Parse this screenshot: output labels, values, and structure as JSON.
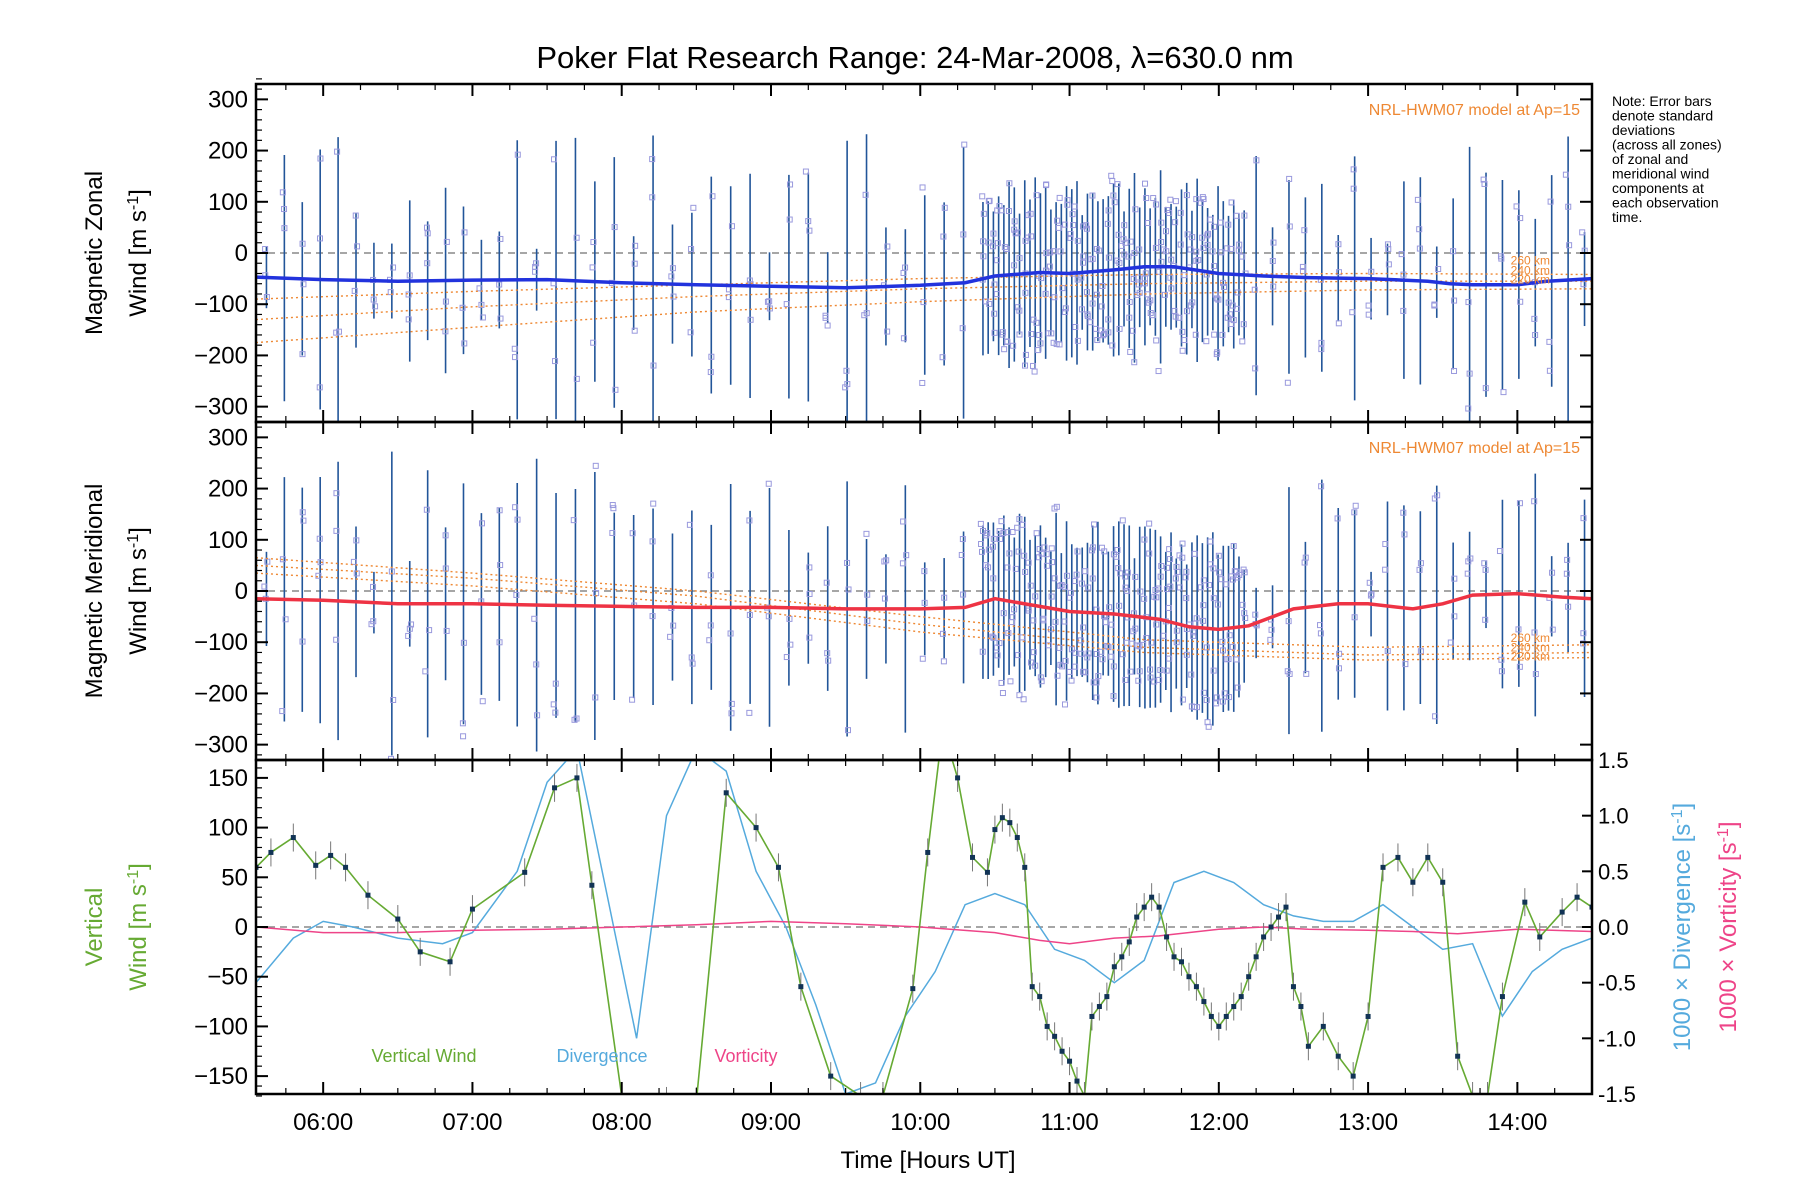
{
  "title": "Poker Flat Research Range: 24-Mar-2008, λ=630.0 nm",
  "note_lines": [
    "Note: Error bars",
    "denote standard",
    "deviations",
    "(across all zones)",
    "of zonal and",
    "meridional wind",
    "components at",
    "each observation",
    "time."
  ],
  "colors": {
    "zonal": "#2233dd",
    "zonal_highlight": "#55aadd",
    "meridional": "#ee3344",
    "meridional_highlight": "#ff5577",
    "vertical": "#66aa33",
    "divergence": "#55aadd",
    "vorticity": "#ee4488",
    "model": "#ee8833",
    "scatter": "#9999dd",
    "errorbar": "#225599"
  },
  "chart_data": [
    {
      "type": "scatter",
      "id": "zonal",
      "ylabel_line1": "Magnetic Zonal",
      "ylabel_line2": "Wind [m s",
      "ylabel_sup": "-1",
      "ylabel_close": "]",
      "ylim": [
        -330,
        330
      ],
      "yticks": [
        300,
        200,
        100,
        0,
        -100,
        -200,
        -300
      ],
      "model_label": "NRL-HWM07 model at Ap=15",
      "model_alt_labels": [
        "260 km",
        "240 km",
        "220 km"
      ],
      "mean_wind": {
        "x": [
          5.55,
          6.0,
          6.5,
          7.0,
          7.5,
          8.0,
          8.5,
          9.0,
          9.5,
          10.0,
          10.3,
          10.5,
          10.8,
          11.0,
          11.3,
          11.5,
          11.7,
          12.0,
          12.3,
          12.6,
          13.0,
          13.4,
          13.55,
          13.7,
          14.0,
          14.2,
          14.5
        ],
        "y": [
          -47,
          -52,
          -55,
          -53,
          -52,
          -58,
          -62,
          -65,
          -68,
          -63,
          -58,
          -45,
          -38,
          -40,
          -33,
          -27,
          -27,
          -40,
          -45,
          -48,
          -50,
          -55,
          -60,
          -62,
          -62,
          -55,
          -50
        ]
      },
      "model_curves": [
        {
          "name": "260 km",
          "x": [
            5.55,
            7.0,
            8.5,
            10.0,
            11.5,
            13.0,
            14.5
          ],
          "y": [
            -90,
            -75,
            -62,
            -50,
            -42,
            -40,
            -42
          ]
        },
        {
          "name": "240 km",
          "x": [
            5.55,
            7.0,
            8.5,
            10.0,
            11.5,
            13.0,
            14.5
          ],
          "y": [
            -130,
            -105,
            -85,
            -70,
            -60,
            -55,
            -55
          ]
        },
        {
          "name": "220 km",
          "x": [
            5.55,
            7.0,
            8.5,
            10.0,
            11.5,
            13.0,
            14.5
          ],
          "y": [
            -175,
            -145,
            -115,
            -95,
            -80,
            -72,
            -70
          ]
        }
      ]
    },
    {
      "type": "scatter",
      "id": "meridional",
      "ylabel_line1": "Magnetic Meridional",
      "ylabel_line2": "Wind [m s",
      "ylabel_sup": "-1",
      "ylabel_close": "]",
      "ylim": [
        -330,
        330
      ],
      "yticks": [
        300,
        200,
        100,
        0,
        -100,
        -200,
        -300
      ],
      "model_label": "NRL-HWM07 model at Ap=15",
      "model_alt_labels": [
        "260 km",
        "240 km",
        "220 km"
      ],
      "mean_wind": {
        "x": [
          5.55,
          6.0,
          6.5,
          7.0,
          7.5,
          8.0,
          8.5,
          9.0,
          9.5,
          10.0,
          10.3,
          10.5,
          10.8,
          11.0,
          11.3,
          11.6,
          11.8,
          12.0,
          12.2,
          12.5,
          12.8,
          13.0,
          13.3,
          13.5,
          13.7,
          14.0,
          14.3,
          14.5
        ],
        "y": [
          -15,
          -18,
          -25,
          -25,
          -28,
          -30,
          -32,
          -32,
          -35,
          -35,
          -32,
          -15,
          -30,
          -40,
          -45,
          -55,
          -70,
          -75,
          -68,
          -35,
          -25,
          -25,
          -35,
          -25,
          -8,
          -5,
          -12,
          -15
        ]
      },
      "model_curves": [
        {
          "name": "260 km",
          "x": [
            5.55,
            7.0,
            8.5,
            10.0,
            11.5,
            13.0,
            14.5
          ],
          "y": [
            65,
            35,
            0,
            -50,
            -95,
            -110,
            -105
          ]
        },
        {
          "name": "240 km",
          "x": [
            5.55,
            7.0,
            8.5,
            10.0,
            11.5,
            13.0,
            14.5
          ],
          "y": [
            50,
            25,
            -10,
            -65,
            -110,
            -125,
            -120
          ]
        },
        {
          "name": "220 km",
          "x": [
            5.55,
            7.0,
            8.5,
            10.0,
            11.5,
            13.0,
            14.5
          ],
          "y": [
            35,
            10,
            -25,
            -80,
            -120,
            -135,
            -130
          ]
        }
      ]
    },
    {
      "type": "line",
      "id": "vertical",
      "ylabel_line1": "Vertical",
      "ylabel_line2": "Wind [m s",
      "ylabel_sup": "-1",
      "ylabel_close": "]",
      "ylim": [
        -168,
        168
      ],
      "yticks": [
        150,
        100,
        50,
        0,
        -50,
        -100,
        -150
      ],
      "y2lim": [
        -1.5,
        1.5
      ],
      "y2ticks": [
        1.5,
        1.0,
        0.5,
        0.0,
        -0.5,
        -1.0,
        -1.5
      ],
      "y2label_div": "1000 × Divergence [s",
      "y2label_vort": "1000 × Vorticity [s",
      "y2label_sup": "-1",
      "y2label_close": "]",
      "legend": [
        "Vertical Wind",
        "Divergence",
        "Vorticity"
      ],
      "xlabel": "Time [Hours UT]",
      "xlim": [
        5.55,
        14.5
      ],
      "xticks": [
        6,
        7,
        8,
        9,
        10,
        11,
        12,
        13,
        14
      ],
      "xticklabels": [
        "06:00",
        "07:00",
        "08:00",
        "09:00",
        "10:00",
        "11:00",
        "12:00",
        "13:00",
        "14:00"
      ],
      "series": [
        {
          "name": "Vertical Wind",
          "x": [
            5.55,
            5.65,
            5.8,
            5.95,
            6.05,
            6.15,
            6.3,
            6.5,
            6.65,
            6.85,
            7.0,
            7.35,
            7.55,
            7.7,
            7.8,
            8.0,
            8.3,
            8.5,
            8.7,
            8.9,
            9.05,
            9.2,
            9.4,
            9.6,
            9.75,
            9.95,
            10.05,
            10.15,
            10.25,
            10.35,
            10.45,
            10.5,
            10.55,
            10.6,
            10.65,
            10.7,
            10.75,
            10.8,
            10.85,
            10.9,
            10.95,
            11.0,
            11.05,
            11.1,
            11.15,
            11.2,
            11.25,
            11.3,
            11.35,
            11.4,
            11.45,
            11.5,
            11.55,
            11.6,
            11.65,
            11.7,
            11.75,
            11.8,
            11.85,
            11.9,
            11.95,
            12.0,
            12.05,
            12.1,
            12.15,
            12.2,
            12.25,
            12.3,
            12.35,
            12.4,
            12.45,
            12.5,
            12.55,
            12.6,
            12.7,
            12.8,
            12.9,
            13.0,
            13.1,
            13.2,
            13.3,
            13.4,
            13.5,
            13.6,
            13.7,
            13.8,
            13.9,
            14.05,
            14.15,
            14.3,
            14.4,
            14.5
          ],
          "y": [
            60,
            75,
            90,
            62,
            72,
            60,
            32,
            8,
            -25,
            -35,
            18,
            55,
            140,
            150,
            42,
            -170,
            -175,
            -175,
            135,
            100,
            60,
            -60,
            -150,
            -170,
            -170,
            -62,
            75,
            200,
            150,
            70,
            55,
            98,
            110,
            105,
            90,
            60,
            -60,
            -70,
            -100,
            -110,
            -125,
            -135,
            -155,
            -170,
            -90,
            -80,
            -70,
            -40,
            -30,
            -15,
            10,
            20,
            30,
            20,
            -10,
            -30,
            -35,
            -50,
            -60,
            -75,
            -90,
            -100,
            -90,
            -80,
            -70,
            -50,
            -30,
            -10,
            0,
            10,
            20,
            -60,
            -80,
            -120,
            -100,
            -130,
            -150,
            -90,
            60,
            70,
            45,
            70,
            45,
            -130,
            -170,
            -170,
            -70,
            25,
            -10,
            15,
            30,
            20
          ]
        },
        {
          "name": "Divergence",
          "x": [
            5.55,
            5.8,
            6.0,
            6.2,
            6.5,
            6.8,
            7.0,
            7.3,
            7.5,
            7.7,
            7.9,
            8.1,
            8.3,
            8.5,
            8.7,
            8.9,
            9.1,
            9.3,
            9.5,
            9.7,
            9.9,
            10.1,
            10.3,
            10.5,
            10.7,
            10.9,
            11.1,
            11.3,
            11.5,
            11.7,
            11.9,
            12.1,
            12.3,
            12.5,
            12.7,
            12.9,
            13.1,
            13.3,
            13.5,
            13.7,
            13.9,
            14.1,
            14.3,
            14.5
          ],
          "y": [
            -0.5,
            -0.1,
            0.05,
            0.0,
            -0.1,
            -0.15,
            -0.05,
            0.5,
            1.3,
            1.6,
            0.3,
            -1.0,
            1.0,
            1.6,
            1.4,
            0.5,
            0.0,
            -0.7,
            -1.5,
            -1.4,
            -0.8,
            -0.4,
            0.2,
            0.3,
            0.2,
            -0.2,
            -0.3,
            -0.5,
            -0.3,
            0.4,
            0.5,
            0.4,
            0.2,
            0.1,
            0.05,
            0.05,
            0.2,
            0.0,
            -0.2,
            -0.15,
            -0.8,
            -0.4,
            -0.2,
            -0.1
          ]
        },
        {
          "name": "Vorticity",
          "x": [
            5.55,
            6.0,
            6.5,
            7.0,
            7.5,
            8.0,
            8.5,
            9.0,
            9.5,
            10.0,
            10.5,
            10.8,
            11.0,
            11.3,
            11.6,
            12.0,
            12.3,
            12.6,
            13.0,
            13.3,
            13.6,
            14.0,
            14.5
          ],
          "y": [
            0.0,
            -0.05,
            -0.05,
            -0.03,
            -0.02,
            0.0,
            0.02,
            0.05,
            0.03,
            0.0,
            -0.05,
            -0.12,
            -0.15,
            -0.1,
            -0.08,
            -0.02,
            0.0,
            -0.02,
            -0.03,
            -0.04,
            -0.06,
            -0.02,
            -0.04
          ]
        }
      ]
    }
  ]
}
